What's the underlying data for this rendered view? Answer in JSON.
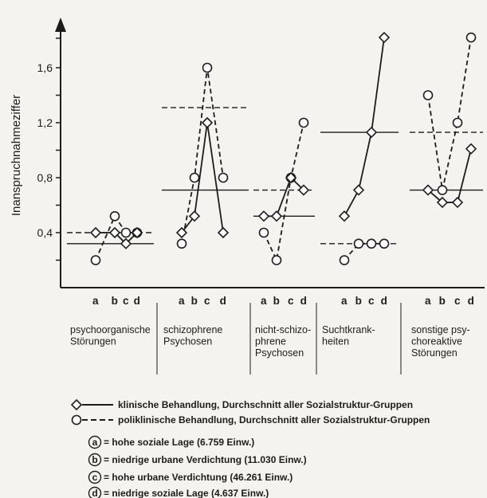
{
  "chart_data": {
    "type": "line",
    "ylabel": "Inanspruchnahmeziffer",
    "yticks": [
      "0,4",
      "0,8",
      "1,2",
      "1,6"
    ],
    "ylim": [
      0,
      1.8
    ],
    "point_labels": [
      "a",
      "b",
      "c",
      "d"
    ],
    "groups": [
      {
        "label_lines": [
          "psychoorganische",
          "Störungen"
        ],
        "klinisch": {
          "values": [
            0.4,
            0.4,
            0.32,
            0.4
          ],
          "mean": 0.32
        },
        "poliklinisch": {
          "values": [
            0.2,
            0.52,
            0.4,
            0.4
          ],
          "mean": 0.4
        }
      },
      {
        "label_lines": [
          "schizophrene",
          "Psychosen"
        ],
        "klinisch": {
          "values": [
            0.4,
            0.52,
            1.2,
            0.4
          ],
          "mean": 0.71
        },
        "poliklinisch": {
          "values": [
            0.32,
            0.8,
            1.6,
            0.8
          ],
          "mean": 1.31
        }
      },
      {
        "label_lines": [
          "nicht-schizo-",
          "phrene",
          "Psychosen"
        ],
        "klinisch": {
          "values": [
            0.52,
            0.52,
            0.8,
            0.71
          ],
          "mean": 0.52
        },
        "poliklinisch": {
          "values": [
            0.4,
            0.2,
            0.8,
            1.2
          ],
          "mean": 0.71
        }
      },
      {
        "label_lines": [
          "Suchtkrank-",
          "heiten"
        ],
        "klinisch": {
          "values": [
            0.52,
            0.71,
            1.13,
            1.82
          ],
          "mean": 1.13
        },
        "poliklinisch": {
          "values": [
            0.2,
            0.32,
            0.32,
            0.32
          ],
          "mean": 0.32
        }
      },
      {
        "label_lines": [
          "sonstige psy-",
          "choreaktive",
          "Störungen"
        ],
        "klinisch": {
          "values": [
            0.71,
            0.62,
            0.62,
            1.01
          ],
          "mean": 0.71
        },
        "poliklinisch": {
          "values": [
            1.4,
            0.71,
            1.2,
            1.82
          ],
          "mean": 1.13
        }
      }
    ],
    "legend": [
      {
        "symbol": "diamond-solid",
        "text": "klinische Behandlung, Durchschnitt aller Sozialstruktur-Gruppen"
      },
      {
        "symbol": "circle-dashed",
        "text": "poliklinische Behandlung, Durchschnitt aller Sozialstruktur-Gruppen"
      },
      {
        "symbol": "circled-letter",
        "letter": "a",
        "text": "= hohe soziale Lage (6.759 Einw.)"
      },
      {
        "symbol": "circled-letter",
        "letter": "b",
        "text": "= niedrige urbane Verdichtung (11.030 Einw.)"
      },
      {
        "symbol": "circled-letter",
        "letter": "c",
        "text": "= hohe urbane Verdichtung (46.261 Einw.)"
      },
      {
        "symbol": "circled-letter",
        "letter": "d",
        "text": "= niedrige soziale Lage (4.637 Einw.)"
      }
    ]
  }
}
